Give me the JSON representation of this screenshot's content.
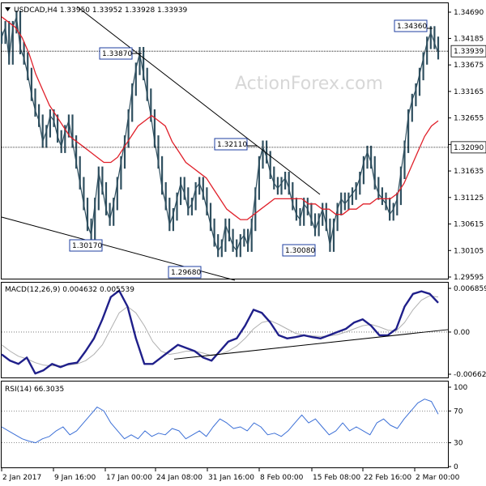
{
  "header": {
    "symbol_line": "USDCAD,H4  1.33950 1.33952 1.33928 1.33939",
    "watermark": "ActionForex.com"
  },
  "colors": {
    "price": "#2f4f5f",
    "ma": "#e0202a",
    "macd": "#1f1f8a",
    "signal": "#b0b0b0",
    "rsi": "#3b6fd6",
    "trendline": "#000000",
    "level_line": "#000000",
    "label_border": "#1f3fa0"
  },
  "chart_data": [
    {
      "type": "line",
      "panel": "price",
      "y_ticks": [
        "1.34690",
        "1.34185",
        "1.33675",
        "1.33165",
        "1.32655",
        "1.32145",
        "1.31635",
        "1.31125",
        "1.30615",
        "1.30105",
        "1.29595"
      ],
      "ylim": [
        1.29595,
        1.3469
      ],
      "x_ticks": [
        "2 Jan 2017",
        "9 Jan 16:00",
        "17 Jan 00:00",
        "24 Jan 08:00",
        "31 Jan 16:00",
        "8 Feb 00:00",
        "15 Feb 08:00",
        "22 Feb 16:00",
        "2 Mar 00:00"
      ],
      "series": [
        {
          "values": [
            1.342,
            1.344,
            1.338,
            1.344,
            1.346,
            1.34,
            1.338,
            1.335,
            1.331,
            1.328,
            1.326,
            1.322,
            1.324,
            1.327,
            1.326,
            1.323,
            1.321,
            1.324,
            1.326,
            1.322,
            1.318,
            1.314,
            1.31,
            1.306,
            1.304,
            1.31,
            1.316,
            1.313,
            1.309,
            1.307,
            1.31,
            1.314,
            1.318,
            1.322,
            1.327,
            1.332,
            1.336,
            1.339,
            1.335,
            1.331,
            1.327,
            1.322,
            1.318,
            1.313,
            1.31,
            1.306,
            1.308,
            1.311,
            1.314,
            1.312,
            1.309,
            1.31,
            1.313,
            1.314,
            1.312,
            1.309,
            1.306,
            1.303,
            1.301,
            1.302,
            1.306,
            1.304,
            1.302,
            1.301,
            1.303,
            1.304,
            1.302,
            1.306,
            1.312,
            1.318,
            1.321,
            1.319,
            1.316,
            1.314,
            1.313,
            1.314,
            1.315,
            1.313,
            1.31,
            1.308,
            1.307,
            1.31,
            1.309,
            1.307,
            1.305,
            1.307,
            1.309,
            1.306,
            1.302,
            1.306,
            1.309,
            1.311,
            1.31,
            1.311,
            1.312,
            1.313,
            1.315,
            1.318,
            1.32,
            1.318,
            1.314,
            1.312,
            1.311,
            1.31,
            1.308,
            1.309,
            1.311,
            1.316,
            1.321,
            1.327,
            1.33,
            1.332,
            1.335,
            1.338,
            1.341,
            1.343,
            1.341,
            1.339
          ]
        },
        {
          "name": "MA",
          "values": [
            1.346,
            1.345,
            1.344,
            1.342,
            1.339,
            1.335,
            1.332,
            1.329,
            1.327,
            1.325,
            1.323,
            1.322,
            1.321,
            1.32,
            1.319,
            1.318,
            1.318,
            1.319,
            1.321,
            1.323,
            1.325,
            1.326,
            1.327,
            1.326,
            1.325,
            1.322,
            1.32,
            1.318,
            1.317,
            1.316,
            1.315,
            1.313,
            1.311,
            1.309,
            1.308,
            1.307,
            1.307,
            1.308,
            1.309,
            1.31,
            1.311,
            1.311,
            1.311,
            1.311,
            1.311,
            1.31,
            1.31,
            1.309,
            1.309,
            1.308,
            1.308,
            1.309,
            1.309,
            1.31,
            1.31,
            1.311,
            1.311,
            1.311,
            1.312,
            1.314,
            1.317,
            1.32,
            1.323,
            1.325,
            1.326
          ]
        }
      ],
      "levels": [
        {
          "value": 1.33939,
          "label": "1.33939"
        },
        {
          "value": 1.3209,
          "label": "1.32090"
        }
      ],
      "annotations": [
        "1.34360",
        "1.33870",
        "1.32110",
        "1.30170",
        "1.29680",
        "1.30080"
      ]
    },
    {
      "type": "line",
      "panel": "macd",
      "title": "MACD(12,26,9) 0.004632 0.005539",
      "y_ticks": [
        "0.006859",
        "0.00",
        "-0.00662"
      ],
      "ylim": [
        -0.00662,
        0.006859
      ],
      "series": [
        {
          "name": "MACD",
          "values": [
            -0.0035,
            -0.0045,
            -0.005,
            -0.004,
            -0.0065,
            -0.006,
            -0.005,
            -0.0055,
            -0.005,
            -0.0048,
            -0.003,
            -0.001,
            0.002,
            0.0055,
            0.0065,
            0.004,
            -0.001,
            -0.005,
            -0.005,
            -0.004,
            -0.003,
            -0.002,
            -0.0025,
            -0.003,
            -0.004,
            -0.0045,
            -0.003,
            -0.0015,
            -0.001,
            0.001,
            0.0035,
            0.003,
            0.0015,
            -0.0005,
            -0.001,
            -0.0008,
            -0.0005,
            -0.0008,
            -0.001,
            -0.0005,
            0.0,
            0.0005,
            0.0015,
            0.002,
            0.001,
            -0.0005,
            -0.0005,
            0.0005,
            0.004,
            0.006,
            0.0064,
            0.006,
            0.0046
          ]
        },
        {
          "name": "Signal",
          "values": [
            -0.002,
            -0.003,
            -0.0038,
            -0.0042,
            -0.0048,
            -0.0052,
            -0.0053,
            -0.0053,
            -0.0052,
            -0.005,
            -0.0045,
            -0.0035,
            -0.002,
            0.0005,
            0.003,
            0.004,
            0.003,
            0.001,
            -0.0015,
            -0.003,
            -0.0035,
            -0.0033,
            -0.003,
            -0.003,
            -0.0033,
            -0.0037,
            -0.0035,
            -0.003,
            -0.0022,
            -0.001,
            0.0005,
            0.0015,
            0.0018,
            0.0012,
            0.0005,
            -0.0002,
            -0.0005,
            -0.0006,
            -0.0007,
            -0.0006,
            -0.0004,
            0.0,
            0.0005,
            0.001,
            0.0012,
            0.0008,
            0.0003,
            0.0002,
            0.0015,
            0.0035,
            0.005,
            0.0057,
            0.0055
          ]
        }
      ],
      "trendline": [
        -0.004,
        0.0
      ]
    },
    {
      "type": "line",
      "panel": "rsi",
      "title": "RSI(14) 66.3035",
      "y_ticks": [
        "100",
        "70",
        "30",
        "0"
      ],
      "ylim": [
        0,
        100
      ],
      "levels": [
        70,
        30
      ],
      "series": [
        {
          "name": "RSI",
          "values": [
            50,
            45,
            40,
            35,
            32,
            30,
            35,
            38,
            45,
            50,
            40,
            45,
            55,
            65,
            75,
            70,
            55,
            45,
            35,
            40,
            35,
            45,
            38,
            42,
            40,
            48,
            45,
            35,
            40,
            45,
            38,
            50,
            60,
            55,
            48,
            50,
            45,
            55,
            50,
            40,
            42,
            38,
            45,
            55,
            65,
            55,
            60,
            50,
            40,
            45,
            55,
            45,
            50,
            45,
            40,
            55,
            60,
            52,
            48,
            60,
            70,
            80,
            85,
            82,
            66
          ]
        }
      ]
    }
  ]
}
